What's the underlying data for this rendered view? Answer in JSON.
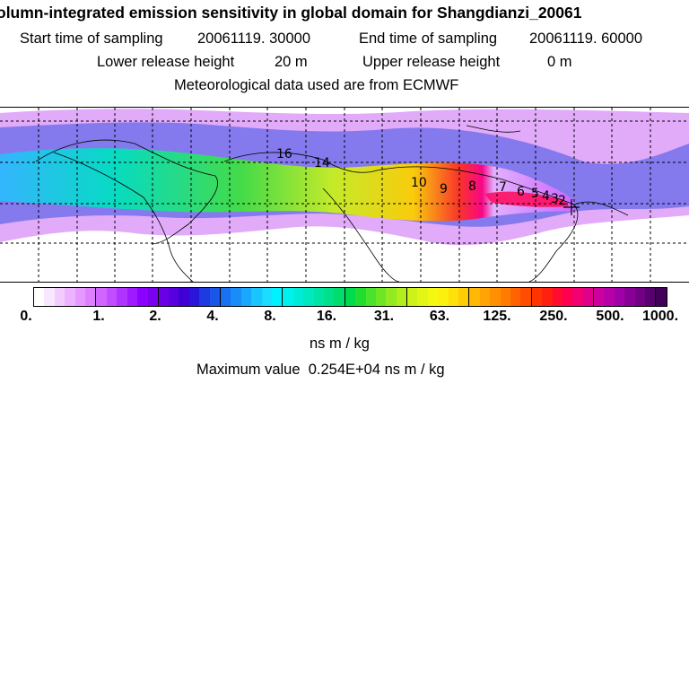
{
  "header": {
    "title": "olumn-integrated emission sensitivity in global domain for Shangdianzi_20061",
    "start_label": "Start time of sampling",
    "start_value": "20061119. 30000",
    "end_label": "End time of sampling",
    "end_value": "20061119. 60000",
    "lower_label": "Lower release height",
    "lower_value": "20 m",
    "upper_label": "Upper release height",
    "upper_value": "0 m",
    "met": "Meteorological data used are from ECMWF"
  },
  "map": {
    "contour_labels": [
      "16",
      "14",
      "10",
      "9",
      "8",
      "7",
      "6",
      "5",
      "4",
      "3",
      "2"
    ],
    "receptor_marker": "plus-marker"
  },
  "legend": {
    "ticks": [
      "0.",
      "1.",
      "2.",
      "4.",
      "8.",
      "16.",
      "31.",
      "63.",
      "125.",
      "250.",
      "500.",
      "1000."
    ],
    "colors": [
      "#ffffff",
      "#f9e6ff",
      "#f3ccff",
      "#ecb3ff",
      "#e699ff",
      "#dd80ff",
      "#d066ff",
      "#c04dff",
      "#b033ff",
      "#9f1aff",
      "#8c00ff",
      "#7a00f0",
      "#6a00e6",
      "#5500dd",
      "#3f00d6",
      "#2a16d9",
      "#1f3ae0",
      "#1a56ea",
      "#1a70f2",
      "#1a8cf8",
      "#1aa8fc",
      "#1ac4ff",
      "#1adcff",
      "#00f2ff",
      "#00f0ee",
      "#00ecd8",
      "#00e8c0",
      "#00e4a6",
      "#00e08a",
      "#00dd6c",
      "#00da4e",
      "#20dd30",
      "#4ae22a",
      "#6ee626",
      "#92ea22",
      "#b2ee1e",
      "#ccf21a",
      "#e2f616",
      "#f2f812",
      "#fcf00e",
      "#ffe00a",
      "#ffcc08",
      "#ffb806",
      "#ffa404",
      "#ff9002",
      "#ff7c00",
      "#ff6400",
      "#ff4c00",
      "#ff3400",
      "#ff2010",
      "#ff0c30",
      "#ff0050",
      "#f00070",
      "#e0008a",
      "#cc009c",
      "#b800a8",
      "#a000a8",
      "#880096",
      "#700084",
      "#580070",
      "#420058"
    ],
    "unit": "ns m / kg",
    "max_label": "Maximum value",
    "max_value": "0.254E+04",
    "max_unit": "ns m / kg"
  }
}
